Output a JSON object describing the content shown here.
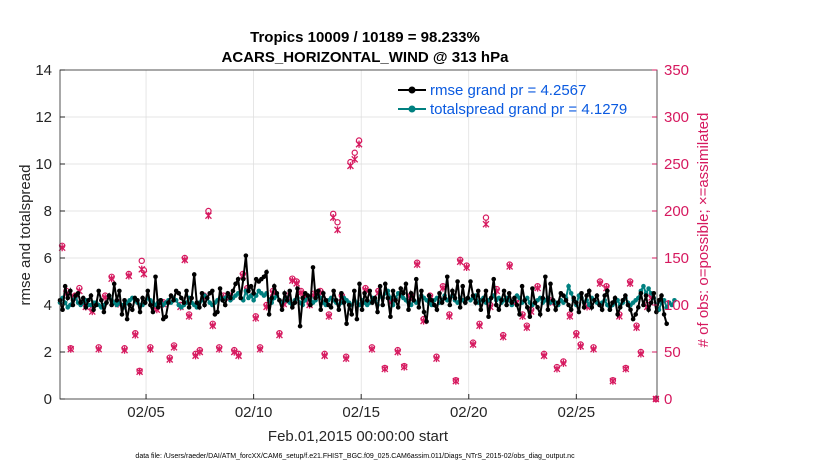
{
  "title_line1": "Tropics 10009 / 10189 = 98.233%",
  "title_line2": "ACARS_HORIZONTAL_WIND @ 313 hPa",
  "xlabel": "Feb.01,2015 00:00:00 start",
  "ylabel_left": "rmse and totalspread",
  "ylabel_right": "# of obs: o=possible; ×=assimilated",
  "footnote": "data file: /Users/raeder/DAI/ATM_forcXX/CAM6_setup/f.e21.FHIST_BGC.f09_025.CAM6assim.011/Diags_NTrS_2015-02/obs_diag_output.nc",
  "legend": {
    "rmse": "rmse grand pr = 4.2567",
    "spread": "totalspread grand pr = 4.1279"
  },
  "colors": {
    "rmse": "#000000",
    "spread": "#008080",
    "obs": "#d6195f",
    "legend_text": "#0a5ae0"
  },
  "chart_data": {
    "type": "line",
    "x_units": "days since Feb.01,2015 00:00",
    "xlim": [
      1,
      28.75
    ],
    "ylim_left": [
      0,
      14
    ],
    "ylim_right": [
      0,
      350
    ],
    "yticks_left": [
      0,
      2,
      4,
      6,
      8,
      10,
      12,
      14
    ],
    "yticks_right": [
      0,
      50,
      100,
      150,
      200,
      250,
      300,
      350
    ],
    "xticks": [
      {
        "day": 5,
        "label": "02/05"
      },
      {
        "day": 10,
        "label": "02/10"
      },
      {
        "day": 15,
        "label": "02/15"
      },
      {
        "day": 20,
        "label": "02/20"
      },
      {
        "day": 25,
        "label": "02/25"
      }
    ],
    "rmse": [
      4.2,
      3.8,
      4.8,
      4.3,
      4.6,
      4.0,
      4.4,
      4.5,
      4.1,
      4.3,
      3.9,
      4.2,
      4.4,
      3.8,
      4.0,
      4.6,
      4.2,
      3.7,
      4.1,
      4.4,
      4.0,
      4.9,
      4.2,
      4.6,
      3.6,
      4.2,
      3.4,
      4.0,
      3.8,
      4.3,
      4.2,
      3.7,
      4.3,
      4.1,
      4.6,
      4.0,
      3.7,
      5.2,
      3.9,
      4.2,
      3.4,
      3.5,
      4.1,
      4.4,
      4.2,
      4.6,
      4.5,
      4.3,
      4.1,
      4.6,
      3.9,
      4.3,
      5.3,
      4.1,
      3.9,
      4.5,
      4.0,
      4.3,
      4.5,
      4.6,
      3.6,
      3.7,
      4.7,
      4.2,
      4.0,
      4.5,
      4.3,
      4.6,
      4.9,
      5.1,
      4.3,
      5.1,
      6.1,
      4.6,
      4.8,
      4.5,
      5.1,
      5.0,
      5.1,
      5.2,
      5.4,
      3.6,
      4.3,
      4.8,
      4.5,
      4.2,
      3.8,
      4.5,
      4.2,
      4.6,
      3.9,
      4.1,
      4.7,
      3.1,
      4.3,
      4.5,
      4.4,
      4.0,
      5.6,
      4.3,
      4.6,
      3.8,
      4.5,
      4.2,
      4.0,
      3.9,
      4.6,
      4.2,
      3.8,
      4.5,
      4.1,
      3.2,
      4.0,
      3.6,
      4.6,
      3.4,
      4.9,
      3.8,
      4.5,
      4.2,
      4.6,
      4.1,
      4.3,
      3.7,
      4.8,
      4.0,
      4.9,
      4.3,
      3.5,
      4.6,
      4.2,
      3.9,
      4.7,
      4.5,
      4.9,
      3.8,
      4.5,
      4.2,
      5.1,
      3.9,
      4.6,
      3.7,
      3.3,
      4.4,
      4.2,
      4.0,
      3.8,
      4.5,
      4.1,
      4.3,
      5.2,
      4.0,
      4.6,
      4.3,
      5.0,
      3.9,
      4.8,
      4.1,
      4.3,
      5.0,
      4.4,
      4.1,
      4.6,
      3.8,
      4.2,
      4.6,
      3.5,
      4.3,
      5.1,
      4.0,
      3.8,
      4.2,
      4.6,
      4.0,
      4.5,
      4.1,
      4.3,
      4.0,
      3.6,
      4.8,
      4.2,
      3.9,
      3.5,
      4.7,
      4.1,
      3.9,
      3.6,
      4.3,
      5.2,
      3.8,
      4.9,
      4.2,
      3.8,
      4.1,
      4.5,
      4.4,
      4.2,
      4.0,
      3.8,
      4.3,
      4.1,
      3.7,
      4.5,
      3.9,
      4.4,
      4.6,
      3.9,
      4.2,
      4.4,
      4.0,
      3.8,
      4.4,
      4.6,
      3.8,
      4.1,
      4.3,
      3.6,
      3.9,
      4.2,
      4.4,
      4.0,
      3.8,
      3.4,
      3.6,
      3.9,
      4.5,
      4.0,
      4.4,
      3.8,
      4.1,
      4.5,
      3.7,
      4.2,
      4.4,
      3.6,
      3.2
    ],
    "totalspread": [
      4.1,
      4.3,
      4.1,
      3.9,
      4.0,
      4.2,
      4.3,
      4.1,
      4.0,
      4.1,
      4.2,
      4.0,
      4.0,
      4.1,
      4.1,
      4.0,
      3.9,
      4.0,
      4.1,
      4.4,
      4.2,
      4.1,
      4.0,
      4.1,
      4.0,
      3.9,
      4.1,
      4.2,
      4.3,
      4.2,
      4.1,
      4.0,
      4.0,
      4.1,
      4.3,
      4.2,
      4.1,
      4.0,
      4.1,
      4.2,
      4.0,
      4.1,
      4.2,
      4.1,
      4.3,
      4.2,
      4.0,
      3.9,
      4.0,
      4.1,
      4.3,
      4.1,
      4.0,
      3.9,
      4.1,
      4.2,
      4.4,
      4.3,
      4.1,
      4.0,
      4.1,
      4.2,
      4.3,
      4.2,
      4.3,
      4.4,
      4.2,
      4.3,
      4.4,
      4.5,
      4.3,
      4.2,
      4.6,
      4.3,
      4.4,
      4.2,
      4.4,
      4.6,
      4.5,
      4.4,
      4.5,
      4.2,
      4.1,
      4.3,
      4.4,
      4.2,
      4.1,
      4.2,
      4.3,
      4.1,
      4.0,
      4.2,
      4.3,
      4.1,
      4.0,
      4.2,
      4.4,
      4.3,
      4.1,
      4.2,
      4.4,
      4.3,
      4.1,
      4.0,
      4.2,
      4.3,
      4.2,
      4.1,
      4.0,
      4.1,
      4.3,
      4.2,
      4.1,
      4.0,
      4.2,
      4.1,
      4.0,
      4.2,
      4.1,
      4.0,
      4.1,
      4.3,
      4.2,
      4.0,
      4.4,
      4.3,
      4.5,
      4.6,
      4.3,
      4.0,
      4.3,
      4.5,
      4.4,
      4.3,
      4.2,
      4.1,
      4.0,
      4.2,
      4.1,
      4.2,
      4.4,
      4.3,
      4.2,
      4.1,
      4.0,
      4.2,
      4.3,
      4.1,
      4.2,
      4.4,
      4.2,
      4.3,
      4.4,
      4.2,
      4.1,
      4.3,
      4.2,
      4.1,
      4.3,
      4.2,
      4.3,
      4.4,
      4.1,
      4.2,
      4.3,
      4.1,
      4.2,
      4.3,
      4.4,
      4.2,
      4.3,
      4.1,
      4.2,
      4.3,
      4.2,
      4.0,
      4.2,
      4.4,
      4.3,
      4.1,
      4.2,
      4.3,
      4.1,
      4.0,
      4.1,
      4.2,
      4.3,
      4.1,
      4.2,
      4.3,
      4.1,
      4.2,
      4.1,
      4.0,
      4.2,
      4.1,
      4.3,
      4.8,
      4.5,
      4.2,
      4.0,
      4.4,
      4.3,
      4.1,
      4.2,
      4.0,
      4.3,
      4.2,
      4.1,
      4.0,
      4.1,
      4.2,
      4.0,
      3.8,
      4.0,
      4.1,
      4.2,
      4.0,
      4.1,
      4.3,
      4.1,
      4.0,
      4.1,
      4.2,
      4.3,
      4.6,
      4.8,
      4.5,
      4.7,
      4.5,
      4.3,
      4.0,
      3.8,
      4.1,
      4.2,
      3.9,
      4.1,
      4.0,
      4.2
    ],
    "obs_possible": [
      [
        1.1,
        163
      ],
      [
        1.3,
        115
      ],
      [
        1.5,
        54
      ],
      [
        1.7,
        110
      ],
      [
        1.9,
        118
      ],
      [
        2.2,
        100
      ],
      [
        2.5,
        95
      ],
      [
        2.8,
        55
      ],
      [
        3.1,
        110
      ],
      [
        3.4,
        130
      ],
      [
        3.7,
        103
      ],
      [
        4.0,
        54
      ],
      [
        4.2,
        133
      ],
      [
        4.5,
        70
      ],
      [
        4.7,
        30
      ],
      [
        4.8,
        147
      ],
      [
        4.9,
        137
      ],
      [
        5.2,
        55
      ],
      [
        5.5,
        97
      ],
      [
        5.8,
        103
      ],
      [
        6.1,
        44
      ],
      [
        6.3,
        57
      ],
      [
        6.6,
        100
      ],
      [
        6.8,
        150
      ],
      [
        7.0,
        90
      ],
      [
        7.3,
        48
      ],
      [
        7.5,
        52
      ],
      [
        7.7,
        110
      ],
      [
        7.9,
        200
      ],
      [
        8.1,
        80
      ],
      [
        8.4,
        55
      ],
      [
        8.6,
        110
      ],
      [
        8.9,
        110
      ],
      [
        9.1,
        52
      ],
      [
        9.3,
        48
      ],
      [
        9.5,
        133
      ],
      [
        9.7,
        118
      ],
      [
        10.1,
        88
      ],
      [
        10.3,
        55
      ],
      [
        10.6,
        100
      ],
      [
        10.9,
        115
      ],
      [
        11.2,
        70
      ],
      [
        11.4,
        103
      ],
      [
        11.6,
        110
      ],
      [
        11.8,
        128
      ],
      [
        12.0,
        125
      ],
      [
        12.2,
        115
      ],
      [
        12.4,
        110
      ],
      [
        12.6,
        102
      ],
      [
        12.8,
        112
      ],
      [
        13.1,
        115
      ],
      [
        13.3,
        48
      ],
      [
        13.5,
        90
      ],
      [
        13.7,
        197
      ],
      [
        13.9,
        188
      ],
      [
        14.1,
        110
      ],
      [
        14.3,
        45
      ],
      [
        14.5,
        252
      ],
      [
        14.7,
        262
      ],
      [
        14.9,
        275
      ],
      [
        15.2,
        118
      ],
      [
        15.5,
        55
      ],
      [
        15.8,
        115
      ],
      [
        16.1,
        33
      ],
      [
        16.4,
        105
      ],
      [
        16.7,
        52
      ],
      [
        17.0,
        35
      ],
      [
        17.3,
        110
      ],
      [
        17.6,
        145
      ],
      [
        17.9,
        85
      ],
      [
        18.2,
        110
      ],
      [
        18.5,
        45
      ],
      [
        18.8,
        120
      ],
      [
        19.1,
        90
      ],
      [
        19.4,
        20
      ],
      [
        19.6,
        148
      ],
      [
        19.9,
        142
      ],
      [
        20.2,
        60
      ],
      [
        20.5,
        80
      ],
      [
        20.8,
        193
      ],
      [
        21.0,
        100
      ],
      [
        21.3,
        117
      ],
      [
        21.6,
        68
      ],
      [
        21.9,
        143
      ],
      [
        22.2,
        105
      ],
      [
        22.5,
        90
      ],
      [
        22.7,
        78
      ],
      [
        22.9,
        95
      ],
      [
        23.2,
        120
      ],
      [
        23.5,
        48
      ],
      [
        23.8,
        105
      ],
      [
        24.1,
        34
      ],
      [
        24.4,
        40
      ],
      [
        24.7,
        90
      ],
      [
        25.0,
        70
      ],
      [
        25.2,
        58
      ],
      [
        25.5,
        100
      ],
      [
        25.8,
        55
      ],
      [
        26.1,
        125
      ],
      [
        26.4,
        120
      ],
      [
        26.7,
        20
      ],
      [
        27.0,
        90
      ],
      [
        27.3,
        33
      ],
      [
        27.5,
        125
      ],
      [
        27.8,
        78
      ],
      [
        28.0,
        50
      ],
      [
        28.3,
        100
      ],
      [
        28.5,
        110
      ],
      [
        28.7,
        0
      ]
    ],
    "obs_assimilated": [
      [
        1.1,
        161
      ],
      [
        1.3,
        112
      ],
      [
        1.5,
        53
      ],
      [
        1.7,
        108
      ],
      [
        1.9,
        115
      ],
      [
        2.2,
        98
      ],
      [
        2.5,
        93
      ],
      [
        2.8,
        53
      ],
      [
        3.1,
        108
      ],
      [
        3.4,
        128
      ],
      [
        3.7,
        101
      ],
      [
        4.0,
        52
      ],
      [
        4.2,
        131
      ],
      [
        4.5,
        68
      ],
      [
        4.7,
        29
      ],
      [
        4.8,
        138
      ],
      [
        4.9,
        133
      ],
      [
        5.2,
        53
      ],
      [
        5.5,
        95
      ],
      [
        5.8,
        101
      ],
      [
        6.1,
        42
      ],
      [
        6.3,
        55
      ],
      [
        6.6,
        98
      ],
      [
        6.8,
        148
      ],
      [
        7.0,
        88
      ],
      [
        7.3,
        46
      ],
      [
        7.5,
        50
      ],
      [
        7.7,
        108
      ],
      [
        7.9,
        195
      ],
      [
        8.1,
        78
      ],
      [
        8.4,
        53
      ],
      [
        8.6,
        108
      ],
      [
        8.9,
        108
      ],
      [
        9.1,
        50
      ],
      [
        9.3,
        46
      ],
      [
        9.5,
        131
      ],
      [
        9.7,
        116
      ],
      [
        10.1,
        86
      ],
      [
        10.3,
        53
      ],
      [
        10.6,
        98
      ],
      [
        10.9,
        113
      ],
      [
        11.2,
        68
      ],
      [
        11.4,
        101
      ],
      [
        11.6,
        108
      ],
      [
        11.8,
        126
      ],
      [
        12.0,
        123
      ],
      [
        12.2,
        113
      ],
      [
        12.4,
        108
      ],
      [
        12.6,
        100
      ],
      [
        12.8,
        110
      ],
      [
        13.1,
        113
      ],
      [
        13.3,
        46
      ],
      [
        13.5,
        88
      ],
      [
        13.7,
        193
      ],
      [
        13.9,
        180
      ],
      [
        14.1,
        108
      ],
      [
        14.3,
        43
      ],
      [
        14.5,
        248
      ],
      [
        14.7,
        255
      ],
      [
        14.9,
        271
      ],
      [
        15.2,
        116
      ],
      [
        15.5,
        53
      ],
      [
        15.8,
        113
      ],
      [
        16.1,
        32
      ],
      [
        16.4,
        103
      ],
      [
        16.7,
        50
      ],
      [
        17.0,
        34
      ],
      [
        17.3,
        108
      ],
      [
        17.6,
        143
      ],
      [
        17.9,
        83
      ],
      [
        18.2,
        108
      ],
      [
        18.5,
        43
      ],
      [
        18.8,
        118
      ],
      [
        19.1,
        88
      ],
      [
        19.4,
        19
      ],
      [
        19.6,
        146
      ],
      [
        19.9,
        140
      ],
      [
        20.2,
        58
      ],
      [
        20.5,
        78
      ],
      [
        20.8,
        186
      ],
      [
        21.0,
        98
      ],
      [
        21.3,
        115
      ],
      [
        21.6,
        66
      ],
      [
        21.9,
        141
      ],
      [
        22.2,
        103
      ],
      [
        22.5,
        88
      ],
      [
        22.7,
        76
      ],
      [
        22.9,
        93
      ],
      [
        23.2,
        118
      ],
      [
        23.5,
        46
      ],
      [
        23.8,
        103
      ],
      [
        24.1,
        32
      ],
      [
        24.4,
        38
      ],
      [
        24.7,
        88
      ],
      [
        25.0,
        68
      ],
      [
        25.2,
        56
      ],
      [
        25.5,
        98
      ],
      [
        25.8,
        53
      ],
      [
        26.1,
        123
      ],
      [
        26.4,
        118
      ],
      [
        26.7,
        19
      ],
      [
        27.0,
        88
      ],
      [
        27.3,
        32
      ],
      [
        27.5,
        123
      ],
      [
        27.8,
        76
      ],
      [
        28.0,
        48
      ],
      [
        28.3,
        98
      ],
      [
        28.5,
        108
      ],
      [
        28.7,
        0
      ]
    ]
  }
}
